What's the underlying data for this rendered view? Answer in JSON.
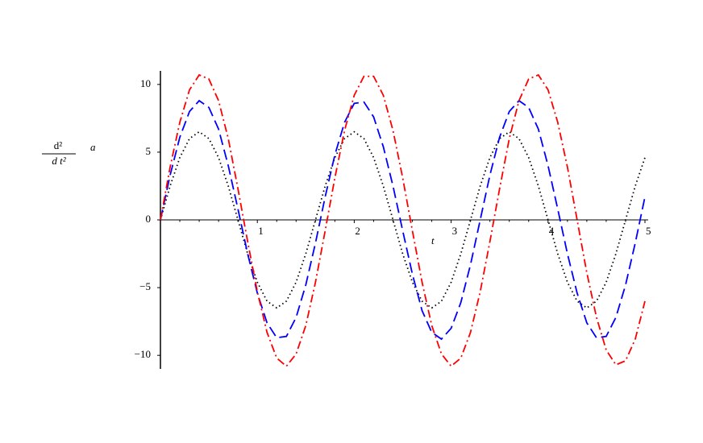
{
  "chart_data": {
    "type": "line",
    "x_label": "t",
    "y_label": {
      "numerator": "d²",
      "denominator": "d t²",
      "variable": "a"
    },
    "x": [
      0,
      0.1,
      0.2,
      0.3,
      0.4,
      0.5,
      0.6,
      0.7,
      0.8,
      0.9,
      1,
      1.1,
      1.2,
      1.3,
      1.4,
      1.5,
      1.6,
      1.7,
      1.8,
      1.9,
      2,
      2.1,
      2.2,
      2.3,
      2.4,
      2.5,
      2.6,
      2.7,
      2.8,
      2.9,
      3,
      3.1,
      3.2,
      3.3,
      3.4,
      3.5,
      3.6,
      3.7,
      3.8,
      3.9,
      4,
      4.1,
      4.2,
      4.3,
      4.4,
      4.5,
      4.6,
      4.7,
      4.8,
      4.9,
      5
    ],
    "series": [
      {
        "color": "#000000",
        "style": "dotted",
        "values": [
          0,
          2.5,
          4.6,
          6.0,
          6.5,
          6.0,
          4.6,
          2.5,
          0,
          -2.5,
          -4.6,
          -6.0,
          -6.5,
          -6.0,
          -4.6,
          -2.5,
          0,
          2.5,
          4.6,
          6.0,
          6.5,
          6.0,
          4.6,
          2.5,
          0,
          -2.5,
          -4.6,
          -6.0,
          -6.5,
          -6.0,
          -4.6,
          -2.5,
          0,
          2.5,
          4.6,
          6.0,
          6.5,
          6.0,
          4.6,
          2.5,
          0,
          -2.5,
          -4.6,
          -6.0,
          -6.5,
          -6.0,
          -4.6,
          -2.5,
          0,
          2.5,
          4.6
        ]
      },
      {
        "color": "#0000ff",
        "style": "dashed",
        "values": [
          0,
          3.3,
          6.1,
          8.0,
          8.8,
          8.3,
          6.7,
          4.0,
          0.8,
          -2.5,
          -5.4,
          -7.6,
          -8.7,
          -8.6,
          -7.2,
          -4.8,
          -1.7,
          1.7,
          4.8,
          7.2,
          8.6,
          8.7,
          7.6,
          5.4,
          2.5,
          -0.8,
          -4.0,
          -6.7,
          -8.3,
          -8.8,
          -8.0,
          -6.1,
          -3.3,
          0,
          3.3,
          6.1,
          8.0,
          8.8,
          8.3,
          6.7,
          4.0,
          0.8,
          -2.5,
          -5.4,
          -7.6,
          -8.7,
          -8.6,
          -7.2,
          -4.8,
          -1.7,
          1.7
        ]
      },
      {
        "color": "#ff0000",
        "style": "dashdot",
        "values": [
          0,
          3.9,
          7.2,
          9.6,
          10.7,
          10.4,
          8.8,
          6.0,
          2.3,
          -1.6,
          -5.3,
          -8.3,
          -10.2,
          -10.8,
          -9.9,
          -7.8,
          -4.6,
          -0.8,
          3.1,
          6.6,
          9.2,
          10.6,
          10.6,
          9.2,
          6.6,
          3.1,
          -0.8,
          -4.6,
          -7.8,
          -9.9,
          -10.8,
          -10.2,
          -8.3,
          -5.3,
          -1.6,
          2.3,
          6.0,
          8.8,
          10.4,
          10.7,
          9.6,
          7.2,
          3.9,
          0.0,
          -3.9,
          -7.2,
          -9.6,
          -10.7,
          -10.4,
          -8.8,
          -6.0
        ]
      }
    ],
    "xlim": [
      0,
      5
    ],
    "xticks": [
      1,
      2,
      3,
      4,
      5
    ],
    "ylim": [
      -11,
      11
    ],
    "yticks": [
      {
        "value": -10,
        "label": "−10"
      },
      {
        "value": -5,
        "label": "−5"
      },
      0,
      5,
      10
    ]
  }
}
